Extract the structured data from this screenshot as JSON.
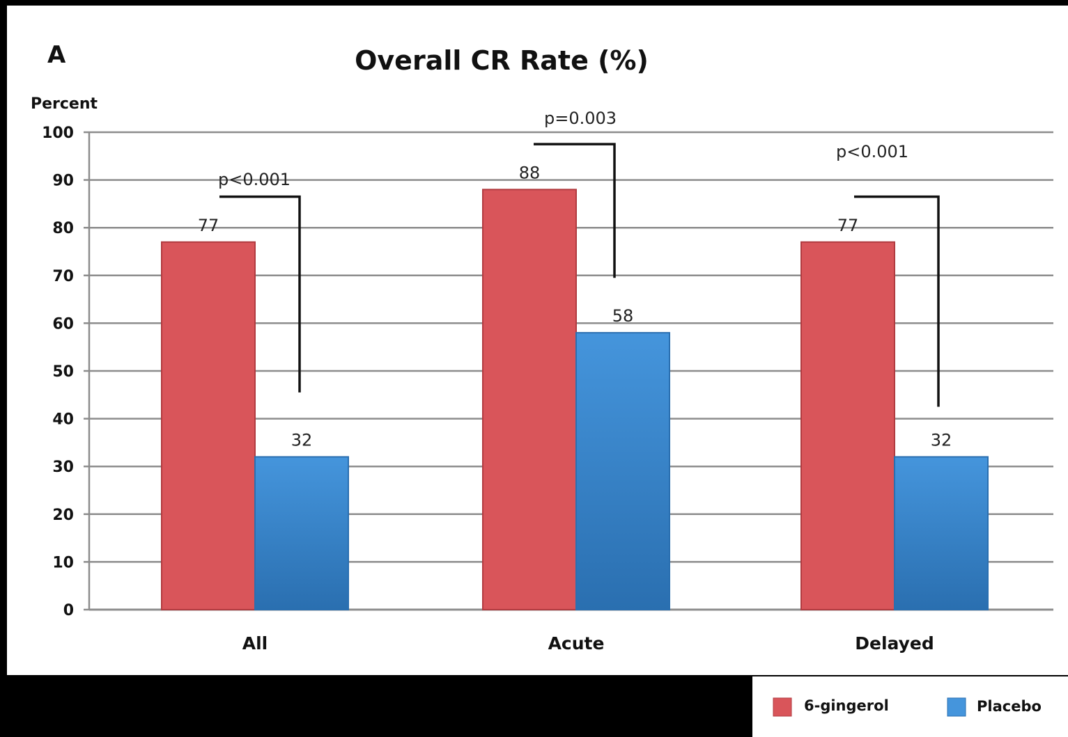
{
  "panel_letter": "A",
  "chart_data": {
    "type": "bar",
    "title": "Overall CR  Rate (%)",
    "ylabel": "Percent",
    "xlabel": "",
    "ylim": [
      0,
      100
    ],
    "yticks": [
      0,
      10,
      20,
      30,
      40,
      50,
      60,
      70,
      80,
      90,
      100
    ],
    "categories": [
      "All",
      "Acute",
      "Delayed"
    ],
    "series": [
      {
        "name": "6-gingerol",
        "values": [
          77,
          88,
          77
        ],
        "color": "#d9555a"
      },
      {
        "name": "Placebo",
        "values": [
          32,
          58,
          32
        ],
        "color": "#3a86cc"
      }
    ],
    "data_labels": [
      [
        "77",
        "88",
        "77"
      ],
      [
        "32",
        "58",
        "32"
      ]
    ],
    "annotations": [
      "p<0.001",
      "p=0.003",
      "p<0.001"
    ],
    "grid": true,
    "legend": "bottom-right"
  }
}
